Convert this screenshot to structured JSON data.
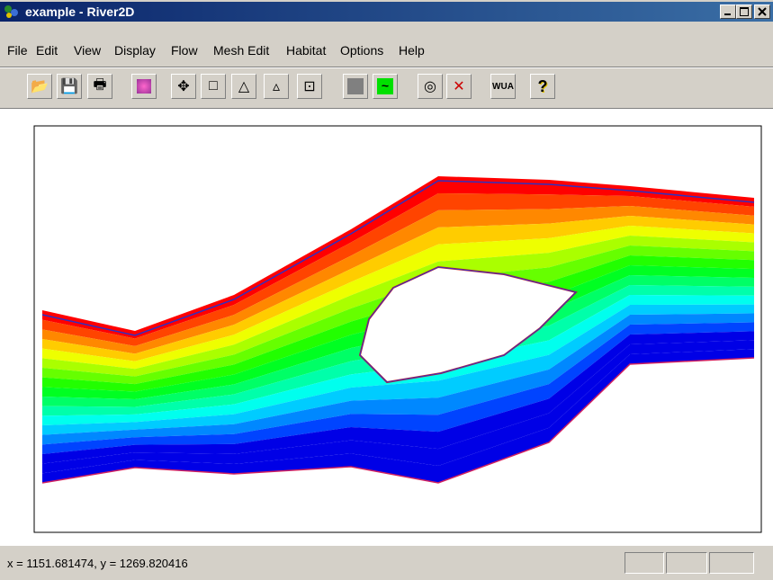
{
  "window": {
    "title": "example - River2D"
  },
  "menu": [
    "File",
    "Edit",
    "View",
    "Display",
    "Flow",
    "Mesh Edit",
    "Habitat",
    "Options",
    "Help"
  ],
  "toolbar": {
    "wua": "WUA",
    "help": "?"
  },
  "status": {
    "coordinates": "x = 1151.681474, y = 1269.820416"
  }
}
